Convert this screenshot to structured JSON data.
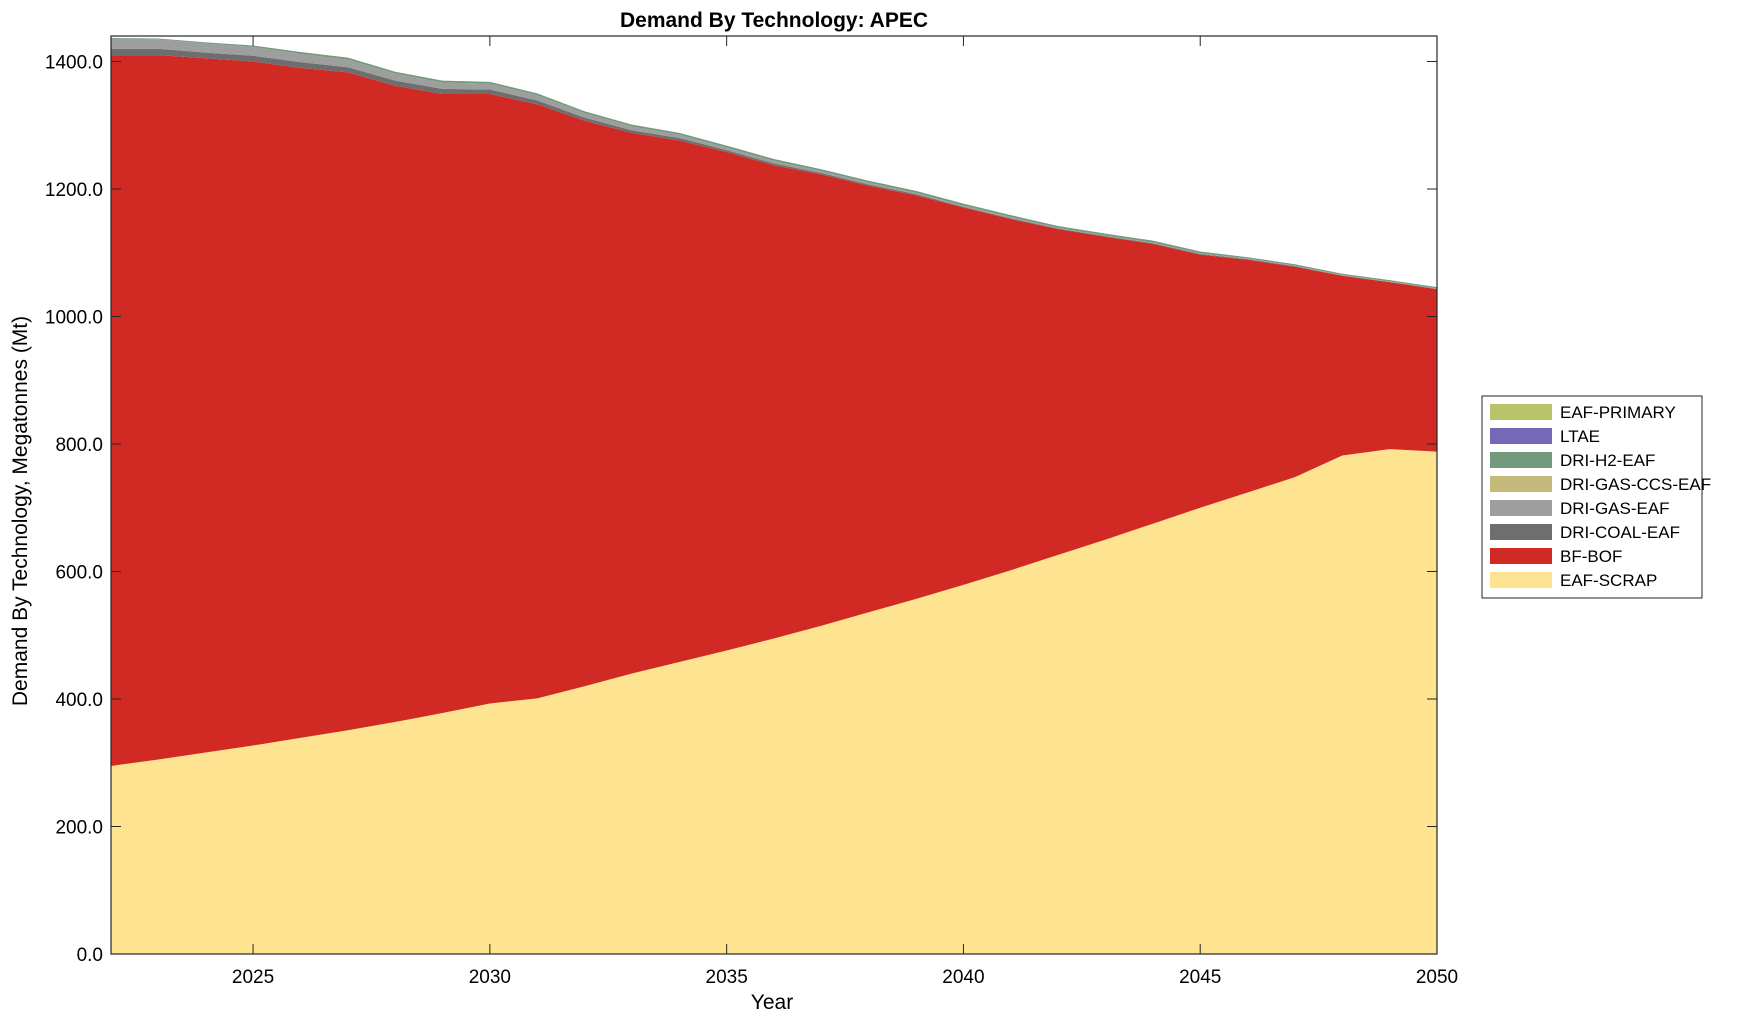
{
  "chart_data": {
    "type": "area",
    "stacked": true,
    "title": "Demand By Technology: APEC",
    "xlabel": "Year",
    "ylabel": "Demand By Technology, Megatonnes (Mt)",
    "xlim": [
      2022,
      2050
    ],
    "ylim": [
      0,
      1440
    ],
    "xticks": [
      2025,
      2030,
      2035,
      2040,
      2045,
      2050
    ],
    "yticks": [
      0,
      200,
      400,
      600,
      800,
      1000,
      1200,
      1400
    ],
    "ytick_labels": [
      "0.0",
      "200.0",
      "400.0",
      "600.0",
      "800.0",
      "1000.0",
      "1200.0",
      "1400.0"
    ],
    "xtick_labels": [
      "2025",
      "2030",
      "2035",
      "2040",
      "2045",
      "2050"
    ],
    "grid": false,
    "legend_position": "right",
    "x": [
      2022,
      2023,
      2024,
      2025,
      2026,
      2027,
      2028,
      2029,
      2030,
      2031,
      2032,
      2033,
      2034,
      2035,
      2036,
      2037,
      2038,
      2039,
      2040,
      2041,
      2042,
      2043,
      2044,
      2045,
      2046,
      2047,
      2048,
      2049,
      2050
    ],
    "series": [
      {
        "name": "EAF-SCRAP",
        "color": "#FEE391",
        "values": [
          295,
          305,
          316,
          327,
          339,
          351,
          364,
          378,
          393,
          401,
          420,
          440,
          458,
          476,
          495,
          515,
          536,
          557,
          579,
          602,
          626,
          650,
          675,
          700,
          724,
          748,
          782,
          792,
          788
        ]
      },
      {
        "name": "BF-BOF",
        "color": "#D12A24",
        "values": [
          1115,
          1105,
          1089,
          1073,
          1051,
          1032,
          998,
          971,
          956,
          932,
          887,
          848,
          818,
          782,
          742,
          708,
          669,
          633,
          592,
          551,
          511,
          475,
          439,
          397,
          365,
          330,
          282,
          262,
          255
        ]
      },
      {
        "name": "DRI-COAL-EAF",
        "color": "#6E6E6E",
        "values": [
          10,
          10,
          9,
          9,
          9,
          8,
          8,
          8,
          7,
          6,
          5,
          4,
          4,
          3,
          3,
          2,
          2,
          2,
          1,
          1,
          1,
          1,
          1,
          1,
          1,
          1,
          0,
          0,
          0
        ]
      },
      {
        "name": "DRI-GAS-EAF",
        "color": "#9E9E9E",
        "values": [
          16,
          15,
          14,
          14,
          13,
          12,
          11,
          10,
          9,
          8,
          7,
          6,
          5,
          4,
          4,
          3,
          3,
          2,
          2,
          2,
          1,
          1,
          1,
          1,
          1,
          1,
          1,
          1,
          1
        ]
      },
      {
        "name": "DRI-GAS-CCS-EAF",
        "color": "#C2B97A",
        "values": [
          0,
          0,
          0,
          0,
          0,
          0,
          0,
          0,
          0,
          0,
          0,
          0,
          0,
          0,
          0,
          0,
          0,
          0,
          0,
          0,
          0,
          0,
          0,
          0,
          0,
          0,
          0,
          0,
          0
        ]
      },
      {
        "name": "DRI-H2-EAF",
        "color": "#739A7C",
        "values": [
          1,
          1,
          2,
          2,
          3,
          3,
          3,
          3,
          3,
          3,
          3,
          3,
          3,
          3,
          3,
          3,
          3,
          3,
          3,
          3,
          3,
          3,
          3,
          3,
          2,
          2,
          2,
          2,
          2
        ]
      },
      {
        "name": "LTAE",
        "color": "#7469B6",
        "values": [
          0,
          0,
          0,
          0,
          0,
          0,
          0,
          0,
          0,
          0,
          0,
          0,
          0,
          0,
          0,
          0,
          0,
          0,
          0,
          0,
          0,
          0,
          0,
          0,
          0,
          0,
          0,
          0,
          0
        ]
      },
      {
        "name": "EAF-PRIMARY",
        "color": "#B9C46A",
        "values": [
          0,
          0,
          0,
          0,
          0,
          0,
          0,
          0,
          0,
          0,
          0,
          0,
          0,
          0,
          0,
          0,
          0,
          0,
          0,
          0,
          0,
          0,
          0,
          0,
          0,
          0,
          0,
          0,
          0
        ]
      }
    ],
    "legend_order": [
      "EAF-PRIMARY",
      "LTAE",
      "DRI-H2-EAF",
      "DRI-GAS-CCS-EAF",
      "DRI-GAS-EAF",
      "DRI-COAL-EAF",
      "BF-BOF",
      "EAF-SCRAP"
    ]
  }
}
